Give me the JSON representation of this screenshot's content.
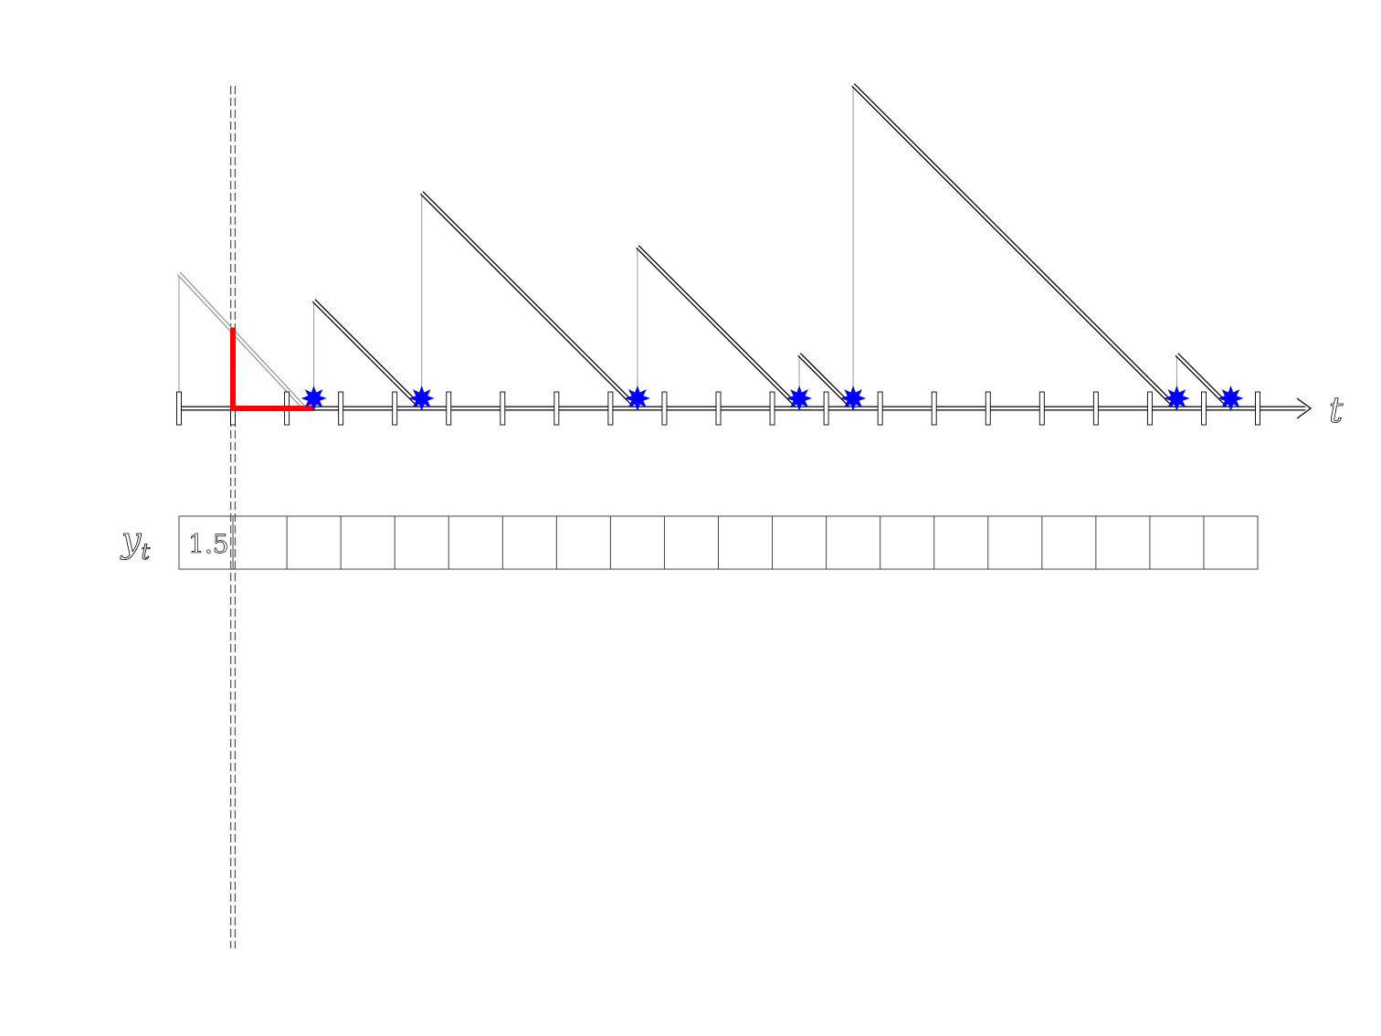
{
  "diagram": {
    "time_axis_label": "t",
    "row_label": "y",
    "row_label_subscript": "t",
    "slots": 20,
    "time_range": [
      0,
      20
    ],
    "cursor_time": 1,
    "sawtooth_teeth": [
      {
        "start": 0,
        "end": 2.33,
        "height": 2.5,
        "cycle": "faded"
      },
      {
        "start": 2.5,
        "end": 4.5,
        "height": 2.0
      },
      {
        "start": 4.5,
        "end": 8.5,
        "height": 4.0
      },
      {
        "start": 8.5,
        "end": 11.5,
        "height": 3.0
      },
      {
        "start": 11.5,
        "end": 12.5,
        "height": 1.0
      },
      {
        "start": 12.5,
        "end": 18.5,
        "height": 6.0
      },
      {
        "start": 18.5,
        "end": 19.5,
        "height": 1.0
      }
    ],
    "event_times": [
      2.5,
      4.5,
      8.5,
      11.5,
      12.5,
      18.5,
      19.5
    ],
    "highlight": {
      "time": 1,
      "value": 1.5,
      "until": 2.5
    },
    "cells": [
      "1.5",
      "",
      "",
      "",
      "",
      "",
      "",
      "",
      "",
      "",
      "",
      "",
      "",
      "",
      "",
      "",
      "",
      "",
      "",
      ""
    ],
    "colors": {
      "stroke": "#000000",
      "faded": "#999999",
      "highlight": "#ff0000",
      "event": "#0000ff",
      "cursor": "#555555"
    }
  }
}
